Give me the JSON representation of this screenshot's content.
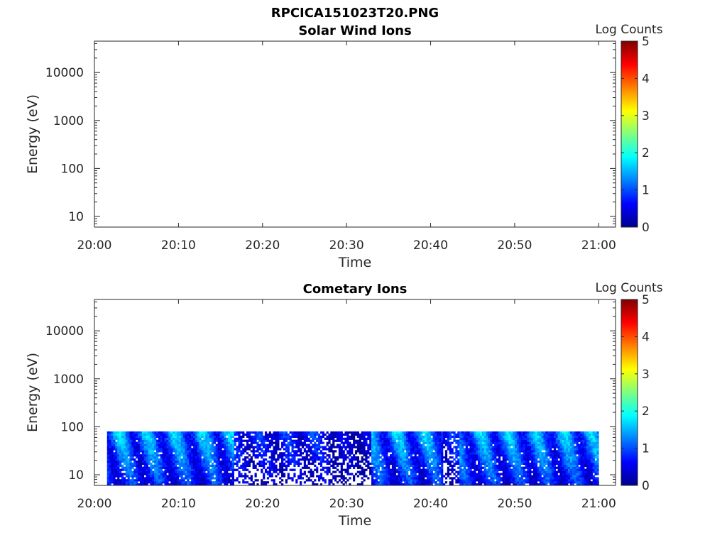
{
  "figure_title": "RPCICA151023T20.PNG",
  "colorbar_label": "Log Counts",
  "colorbar_ticks": [
    "0",
    "1",
    "2",
    "3",
    "4",
    "5"
  ],
  "colormap": [
    "#00008f",
    "#0000ff",
    "#00ffff",
    "#ffff00",
    "#ff0000",
    "#800000"
  ],
  "chart_data": [
    {
      "type": "heatmap",
      "title": "Solar Wind Ions",
      "xlabel": "Time",
      "ylabel": "Energy (eV)",
      "x_ticks": [
        "20:00",
        "20:10",
        "20:20",
        "20:30",
        "20:40",
        "20:50",
        "21:00"
      ],
      "y_ticks": [
        "10",
        "100",
        "1000",
        "10000"
      ],
      "y_scale": "log",
      "ylim": [
        6,
        45000
      ],
      "xlim": [
        "20:00",
        "21:02"
      ],
      "clim": [
        0,
        5
      ],
      "data_present": false,
      "description_of_signal": "no counts detected"
    },
    {
      "type": "heatmap",
      "title": "Cometary Ions",
      "xlabel": "Time",
      "ylabel": "Energy (eV)",
      "x_ticks": [
        "20:00",
        "20:10",
        "20:20",
        "20:30",
        "20:40",
        "20:50",
        "21:00"
      ],
      "y_ticks": [
        "10",
        "100",
        "1000",
        "10000"
      ],
      "y_scale": "log",
      "ylim": [
        6,
        45000
      ],
      "xlim": [
        "20:00",
        "21:02"
      ],
      "clim": [
        0,
        5
      ],
      "data_present": true,
      "data_time_range": [
        "20:01:30",
        "21:00:00"
      ],
      "data_energy_range": [
        6,
        80
      ],
      "segments": [
        {
          "start": "20:01:30",
          "end": "20:16:30",
          "level": "medium",
          "log_counts_peak": 1.8
        },
        {
          "start": "20:16:30",
          "end": "20:28:00",
          "level": "low",
          "log_counts_peak": 1.0
        },
        {
          "start": "20:28:00",
          "end": "20:33:00",
          "level": "very-low",
          "log_counts_peak": 0.6
        },
        {
          "start": "20:33:00",
          "end": "20:41:30",
          "level": "medium",
          "log_counts_peak": 1.8
        },
        {
          "start": "20:41:30",
          "end": "20:43:30",
          "level": "low",
          "log_counts_peak": 1.0
        },
        {
          "start": "20:43:30",
          "end": "21:00:00",
          "level": "medium",
          "log_counts_peak": 1.8
        }
      ]
    }
  ]
}
